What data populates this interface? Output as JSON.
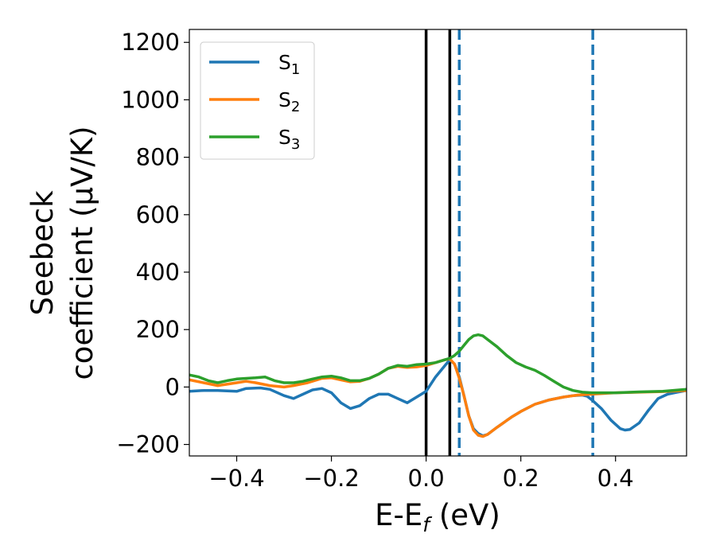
{
  "chart_data": {
    "type": "line",
    "xlabel": "E-E",
    "xlabel_sub": "f",
    "xlabel_unit": " (eV)",
    "ylabel_line1": "Seebeck",
    "ylabel_line2": "coefficient  (μV/K)",
    "xlim": [
      -0.5,
      0.55
    ],
    "ylim": [
      -240,
      1245
    ],
    "xticks": [
      -0.4,
      -0.2,
      0.0,
      0.2,
      0.4
    ],
    "xtick_labels": [
      "−0.4",
      "−0.2",
      "0.0",
      "0.2",
      "0.4"
    ],
    "yticks": [
      -200,
      0,
      200,
      400,
      600,
      800,
      1000,
      1200
    ],
    "ytick_labels": [
      "−200",
      "0",
      "200",
      "400",
      "600",
      "800",
      "1000",
      "1200"
    ],
    "legend_position": "top-left",
    "grid": false,
    "vlines": [
      {
        "x": 0.0,
        "color": "#000000",
        "style": "solid"
      },
      {
        "x": 0.05,
        "color": "#000000",
        "style": "solid"
      },
      {
        "x": 0.07,
        "color": "#1f77b4",
        "style": "dashed"
      },
      {
        "x": 0.352,
        "color": "#1f77b4",
        "style": "dashed"
      }
    ],
    "series": [
      {
        "name": "S",
        "sub": "1",
        "color": "#1f77b4",
        "x": [
          -0.5,
          -0.47,
          -0.44,
          -0.4,
          -0.38,
          -0.35,
          -0.33,
          -0.3,
          -0.28,
          -0.26,
          -0.24,
          -0.22,
          -0.2,
          -0.18,
          -0.16,
          -0.14,
          -0.12,
          -0.1,
          -0.08,
          -0.06,
          -0.04,
          -0.02,
          0.0,
          0.02,
          0.04,
          0.05,
          0.06,
          0.07,
          0.08,
          0.09,
          0.1,
          0.11,
          0.12,
          0.13,
          0.15,
          0.18,
          0.2,
          0.23,
          0.26,
          0.29,
          0.31,
          0.33,
          0.34,
          0.35,
          0.37,
          0.39,
          0.41,
          0.42,
          0.43,
          0.45,
          0.47,
          0.49,
          0.51,
          0.53,
          0.55
        ],
        "y": [
          -15,
          -12,
          -12,
          -15,
          -5,
          -3,
          -8,
          -30,
          -40,
          -25,
          -10,
          -5,
          -20,
          -55,
          -75,
          -65,
          -40,
          -25,
          -25,
          -40,
          -55,
          -35,
          -15,
          35,
          75,
          95,
          80,
          35,
          -30,
          -100,
          -145,
          -162,
          -170,
          -165,
          -140,
          -105,
          -85,
          -60,
          -45,
          -35,
          -30,
          -28,
          -32,
          -45,
          -75,
          -115,
          -145,
          -150,
          -148,
          -125,
          -80,
          -40,
          -25,
          -18,
          -12
        ]
      },
      {
        "name": "S",
        "sub": "2",
        "color": "#ff7f0e",
        "x": [
          -0.5,
          -0.47,
          -0.44,
          -0.4,
          -0.38,
          -0.36,
          -0.33,
          -0.3,
          -0.28,
          -0.25,
          -0.22,
          -0.2,
          -0.18,
          -0.16,
          -0.14,
          -0.12,
          -0.1,
          -0.08,
          -0.06,
          -0.04,
          -0.02,
          0.0,
          0.02,
          0.04,
          0.05,
          0.06,
          0.07,
          0.08,
          0.09,
          0.1,
          0.11,
          0.12,
          0.13,
          0.15,
          0.18,
          0.2,
          0.23,
          0.26,
          0.29,
          0.32,
          0.35,
          0.4,
          0.45,
          0.5,
          0.55
        ],
        "y": [
          25,
          15,
          5,
          15,
          20,
          15,
          5,
          0,
          5,
          15,
          30,
          32,
          25,
          18,
          20,
          30,
          45,
          65,
          72,
          68,
          70,
          75,
          85,
          95,
          98,
          80,
          30,
          -30,
          -100,
          -150,
          -168,
          -172,
          -165,
          -140,
          -105,
          -85,
          -60,
          -45,
          -35,
          -28,
          -25,
          -20,
          -18,
          -16,
          -12
        ]
      },
      {
        "name": "S",
        "sub": "3",
        "color": "#2ca02c",
        "x": [
          -0.5,
          -0.48,
          -0.46,
          -0.44,
          -0.42,
          -0.4,
          -0.38,
          -0.36,
          -0.34,
          -0.32,
          -0.3,
          -0.28,
          -0.26,
          -0.24,
          -0.22,
          -0.2,
          -0.18,
          -0.16,
          -0.14,
          -0.12,
          -0.1,
          -0.08,
          -0.06,
          -0.04,
          -0.02,
          0.0,
          0.02,
          0.04,
          0.05,
          0.06,
          0.07,
          0.08,
          0.09,
          0.1,
          0.11,
          0.12,
          0.13,
          0.15,
          0.17,
          0.19,
          0.21,
          0.23,
          0.25,
          0.27,
          0.29,
          0.31,
          0.33,
          0.35,
          0.4,
          0.45,
          0.5,
          0.55
        ],
        "y": [
          42,
          35,
          22,
          15,
          22,
          28,
          30,
          32,
          35,
          22,
          15,
          15,
          20,
          28,
          35,
          38,
          32,
          22,
          22,
          30,
          45,
          65,
          75,
          72,
          78,
          80,
          85,
          95,
          100,
          110,
          125,
          145,
          165,
          178,
          182,
          178,
          165,
          140,
          110,
          85,
          70,
          58,
          40,
          20,
          0,
          -12,
          -18,
          -20,
          -20,
          -17,
          -15,
          -8
        ]
      }
    ]
  }
}
